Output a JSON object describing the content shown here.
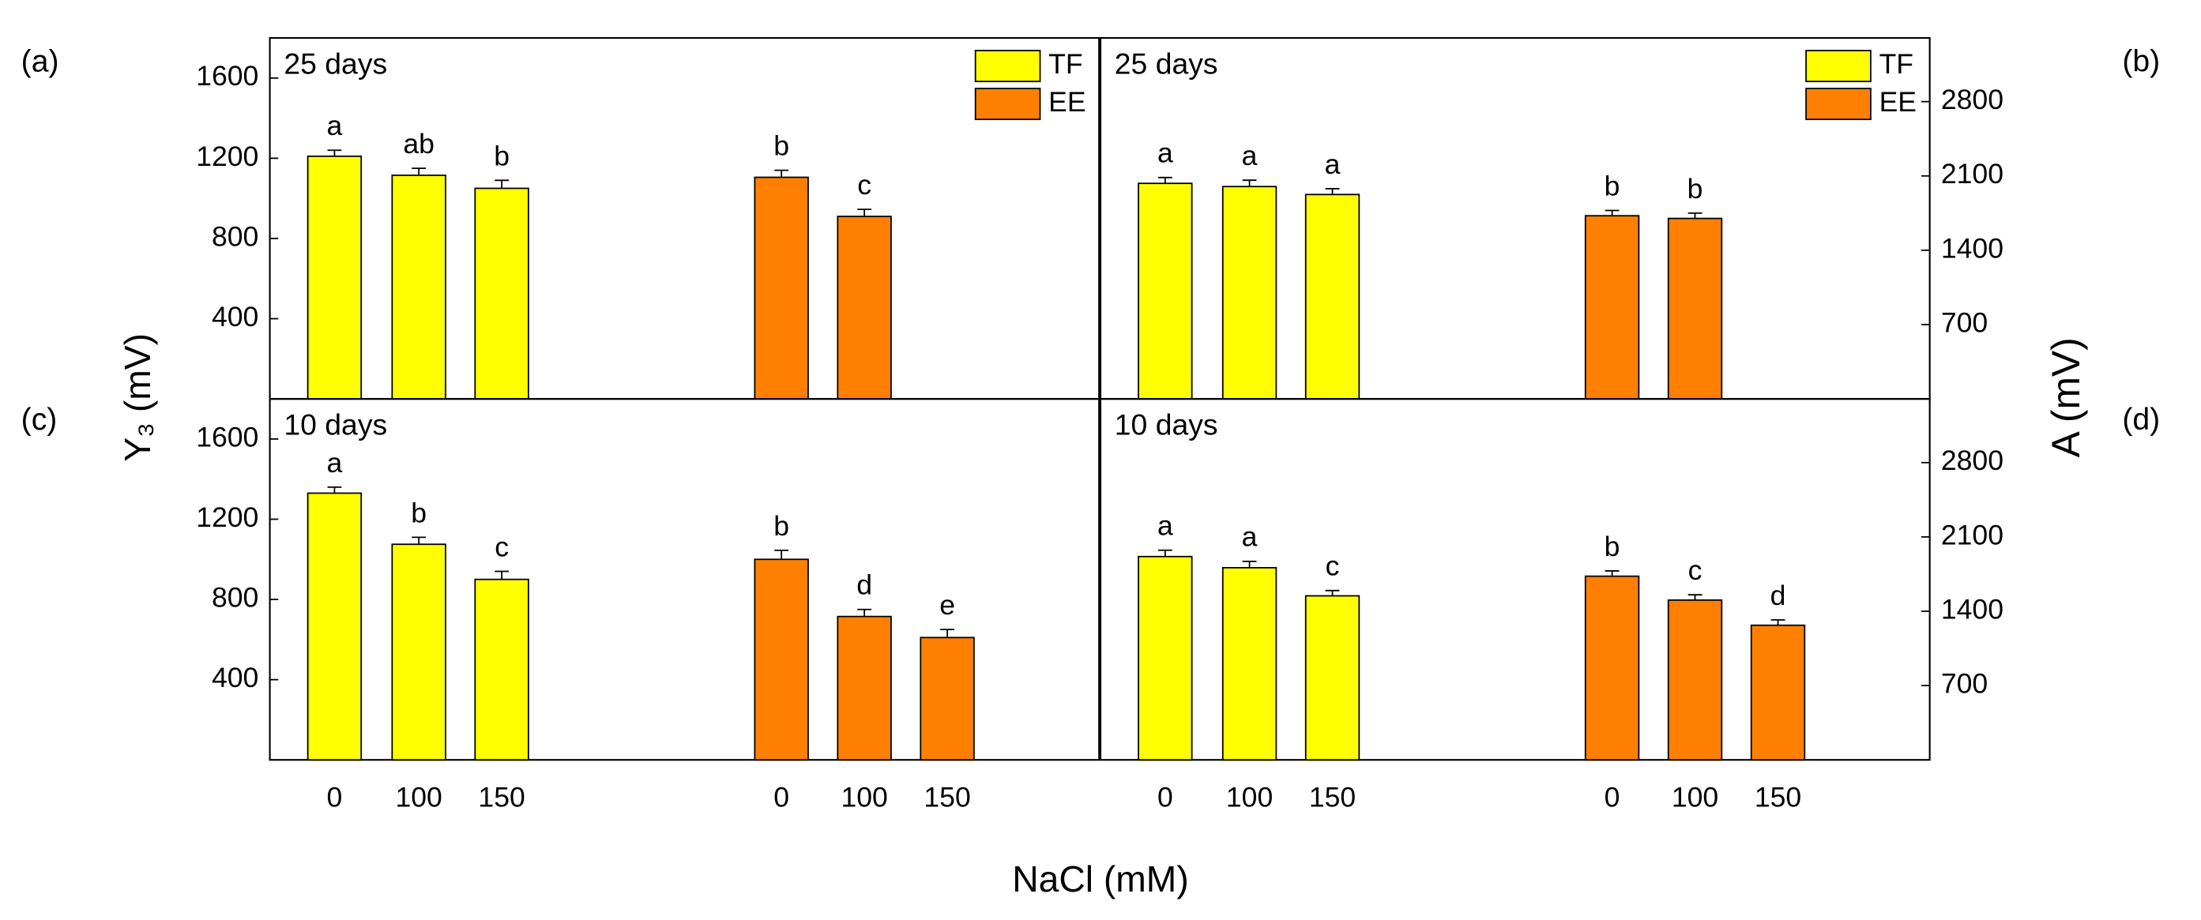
{
  "x_label": "NaCl (mM)",
  "y_label": "Y₃ (mV)",
  "y2_label": "A (mV)",
  "chart_data": [
    {
      "type": "bar",
      "panel_label": "(a)",
      "title": "25 days",
      "ylim": [
        0,
        1800
      ],
      "yticks": [
        400,
        800,
        1200,
        1600
      ],
      "axis_side": "left",
      "legend": "upper right",
      "series": [
        {
          "name": "TF",
          "color": "#ffff00",
          "values": [
            1210,
            1115,
            1050,
            null,
            null,
            null
          ],
          "errors": [
            30,
            35,
            40,
            null,
            null,
            null
          ],
          "letters": [
            "a",
            "ab",
            "b",
            null,
            null,
            null
          ]
        },
        {
          "name": "EE",
          "color": "#ff8000",
          "values": [
            null,
            null,
            null,
            1105,
            910,
            null
          ],
          "errors": [
            null,
            null,
            null,
            35,
            35,
            null
          ],
          "letters": [
            null,
            null,
            null,
            "b",
            "c",
            null
          ]
        }
      ]
    },
    {
      "type": "bar",
      "panel_label": "(b)",
      "title": "25 days",
      "ylim": [
        0,
        3400
      ],
      "yticks": [
        700,
        1400,
        2100,
        2800
      ],
      "axis_side": "right",
      "legend": "upper right",
      "series": [
        {
          "name": "TF",
          "color": "#ffff00",
          "values": [
            2030,
            2000,
            1925,
            null,
            null,
            null
          ],
          "errors": [
            55,
            60,
            55,
            null,
            null,
            null
          ],
          "letters": [
            "a",
            "a",
            "a",
            null,
            null,
            null
          ]
        },
        {
          "name": "EE",
          "color": "#ff8000",
          "values": [
            null,
            null,
            null,
            1725,
            1700,
            null
          ],
          "errors": [
            null,
            null,
            null,
            50,
            50,
            null
          ],
          "letters": [
            null,
            null,
            null,
            "b",
            "b",
            null
          ]
        }
      ]
    },
    {
      "type": "bar",
      "panel_label": "(c)",
      "title": "10 days",
      "ylim": [
        0,
        1800
      ],
      "yticks": [
        400,
        800,
        1200,
        1600
      ],
      "axis_side": "left",
      "categories": [
        "0",
        "100",
        "150",
        "0",
        "100",
        "150"
      ],
      "series": [
        {
          "name": "TF",
          "color": "#ffff00",
          "values": [
            1330,
            1075,
            900,
            null,
            null,
            null
          ],
          "errors": [
            30,
            35,
            40,
            null,
            null,
            null
          ],
          "letters": [
            "a",
            "b",
            "c",
            null,
            null,
            null
          ]
        },
        {
          "name": "EE",
          "color": "#ff8000",
          "values": [
            null,
            null,
            null,
            1000,
            715,
            610
          ],
          "errors": [
            null,
            null,
            null,
            45,
            35,
            40
          ],
          "letters": [
            null,
            null,
            null,
            "b",
            "d",
            "e"
          ]
        }
      ]
    },
    {
      "type": "bar",
      "panel_label": "(d)",
      "title": "10 days",
      "ylim": [
        0,
        3400
      ],
      "yticks": [
        700,
        1400,
        2100,
        2800
      ],
      "axis_side": "right",
      "categories": [
        "0",
        "100",
        "150",
        "0",
        "100",
        "150"
      ],
      "series": [
        {
          "name": "TF",
          "color": "#ffff00",
          "values": [
            1915,
            1810,
            1545,
            null,
            null,
            null
          ],
          "errors": [
            60,
            60,
            50,
            null,
            null,
            null
          ],
          "letters": [
            "a",
            "a",
            "c",
            null,
            null,
            null
          ]
        },
        {
          "name": "EE",
          "color": "#ff8000",
          "values": [
            null,
            null,
            null,
            1730,
            1505,
            1268
          ],
          "errors": [
            null,
            null,
            null,
            50,
            50,
            50
          ],
          "letters": [
            null,
            null,
            null,
            "b",
            "c",
            "d"
          ]
        }
      ]
    }
  ]
}
